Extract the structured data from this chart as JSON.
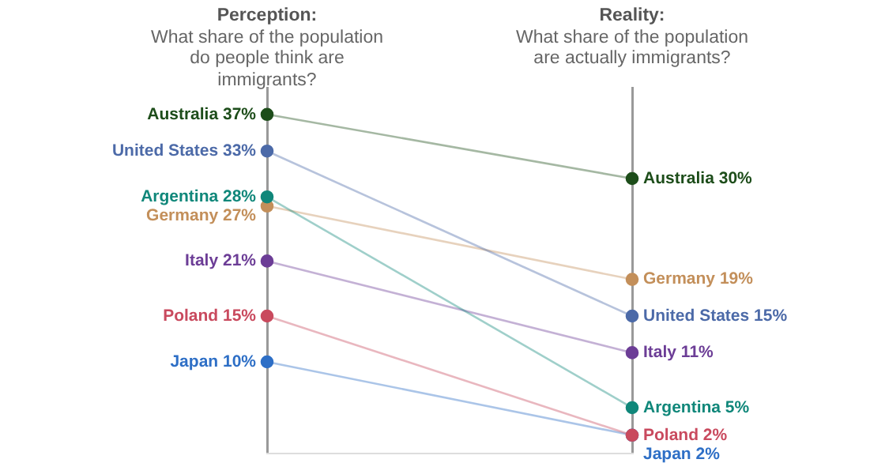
{
  "chart_data": {
    "type": "line",
    "categories": [
      "Perception: What share of the population do people think are immigrants?",
      "Reality: What share of the population are actually immigrants?"
    ],
    "grid": "x",
    "tick_labels": false,
    "legend": false,
    "marker": "circle",
    "series": [
      {
        "color": "#1d4d1a",
        "values": [
          37,
          30
        ],
        "value_labels": [
          "Australia 37%",
          "Australia 30%"
        ]
      },
      {
        "color": "#4c6aa8",
        "values": [
          33,
          15
        ],
        "value_labels": [
          "United States 33%",
          "United States 15%"
        ]
      },
      {
        "color": "#10877a",
        "values": [
          28,
          5
        ],
        "value_labels": [
          "Argentina 28%",
          "Argentina 5%"
        ]
      },
      {
        "color": "#c38f5a",
        "values": [
          27,
          19
        ],
        "value_labels": [
          "Germany 27%",
          "Germany 19%"
        ]
      },
      {
        "color": "#6c3d96",
        "values": [
          21,
          11
        ],
        "value_labels": [
          "Italy 21%",
          "Italy 11%"
        ]
      },
      {
        "color": "#c94a5e",
        "values": [
          15,
          2
        ],
        "value_labels": [
          "Poland 15%",
          "Poland 2%"
        ]
      },
      {
        "color": "#2e6fc6",
        "values": [
          10,
          2
        ],
        "value_labels": [
          "Japan 10%",
          "Japan 2%"
        ]
      }
    ]
  }
}
